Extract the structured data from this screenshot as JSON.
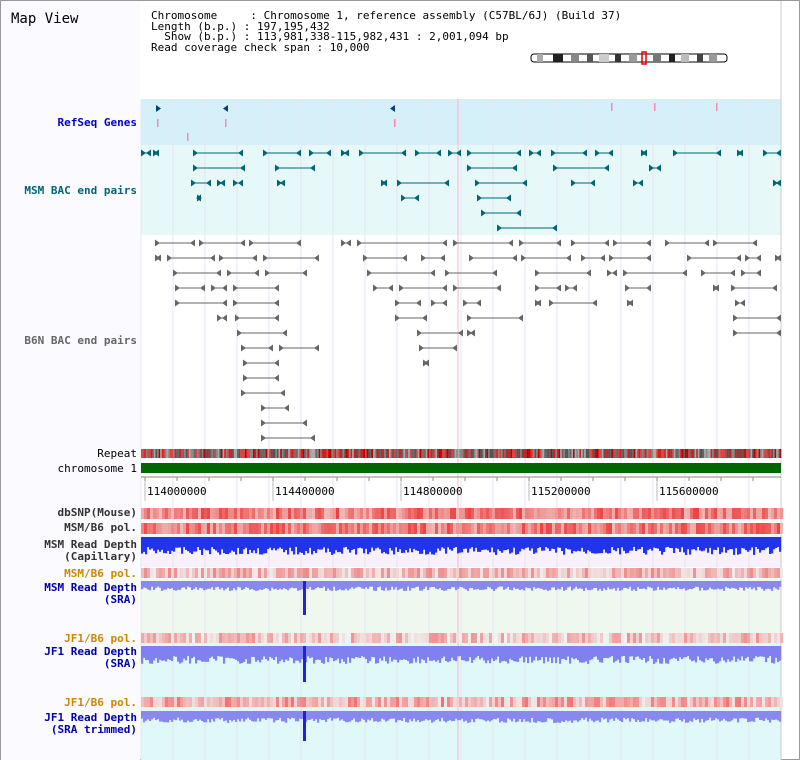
{
  "title": "Map View",
  "info": {
    "line1": "Chromosome     : Chromosome 1, reference assembly (C57BL/6J) (Build 37)",
    "line2": "Length (b.p.) : 197,195,432",
    "line3": "  Show (b.p.) : 113,981,338-115,982,431 : 2,001,094 bp",
    "line4": "Read coverage check span : 10,000"
  },
  "tracks": [
    {
      "id": "refseq",
      "label": "RefSeq Genes",
      "color": "#0000cc"
    },
    {
      "id": "msm_bac",
      "label": "MSM BAC end pairs",
      "color": "#006677"
    },
    {
      "id": "b6n_bac",
      "label": "B6N BAC end pairs",
      "color": "#666666"
    },
    {
      "id": "repeat",
      "label": "Repeat",
      "color": "#000000"
    },
    {
      "id": "chromosome",
      "label": "chromosome 1",
      "color": "#000000"
    },
    {
      "id": "dbsnp",
      "label": "dbSNP(Mouse)",
      "color": "#333333"
    },
    {
      "id": "msmb6pol",
      "label": "MSM/B6 pol.",
      "color": "#333333"
    },
    {
      "id": "msm_cap",
      "label": "MSM Read Depth\n(Capillary)",
      "color": "#333333"
    },
    {
      "id": "msmb6pol2",
      "label": "MSM/B6 pol.",
      "color": "#cc8800"
    },
    {
      "id": "msm_sra",
      "label": "MSM Read Depth\n(SRA)",
      "color": "#0000aa"
    },
    {
      "id": "jf1pol",
      "label": "JF1/B6 pol.",
      "color": "#cc8800"
    },
    {
      "id": "jf1_sra",
      "label": "JF1 Read Depth\n(SRA)",
      "color": "#0000aa"
    },
    {
      "id": "jf1pol2",
      "label": "JF1/B6 pol.",
      "color": "#cc8800"
    },
    {
      "id": "jf1_sra_trim",
      "label": "JF1 Read Depth\n(SRA trimmed)",
      "color": "#0000aa"
    }
  ],
  "axis_ticks": [
    "114000000",
    "114400000",
    "114800000",
    "115200000",
    "115600000"
  ],
  "colors": {
    "refseq_bg": "#d6f0fa",
    "msm_bg": "#e6f8f8",
    "chrom_green": "#006600",
    "depth_blue": "#2222ee",
    "depth_light": "#8888ee",
    "snp_red": "#ee3333"
  }
}
